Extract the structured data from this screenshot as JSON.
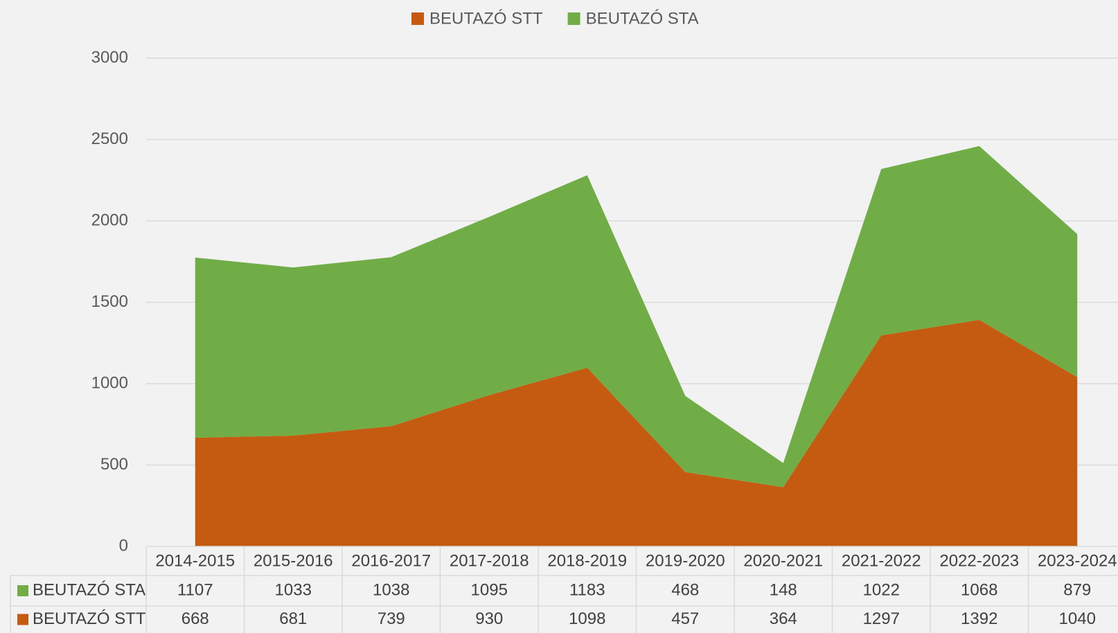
{
  "chart_data": {
    "type": "area",
    "stacked": true,
    "categories": [
      "2014-2015",
      "2015-2016",
      "2016-2017",
      "2017-2018",
      "2018-2019",
      "2019-2020",
      "2020-2021",
      "2021-2022",
      "2022-2023",
      "2023-2024"
    ],
    "series": [
      {
        "name": "BEUTAZÓ STT",
        "color": "#c55a11",
        "values": [
          668,
          681,
          739,
          930,
          1098,
          457,
          364,
          1297,
          1392,
          1040
        ]
      },
      {
        "name": "BEUTAZÓ STA",
        "color": "#70ad47",
        "values": [
          1107,
          1033,
          1038,
          1095,
          1183,
          468,
          148,
          1022,
          1068,
          879
        ]
      }
    ],
    "ylim": [
      0,
      3000
    ],
    "yticks": [
      0,
      500,
      1000,
      1500,
      2000,
      2500,
      3000
    ],
    "grid": true,
    "legend": "top",
    "data_table": true
  }
}
